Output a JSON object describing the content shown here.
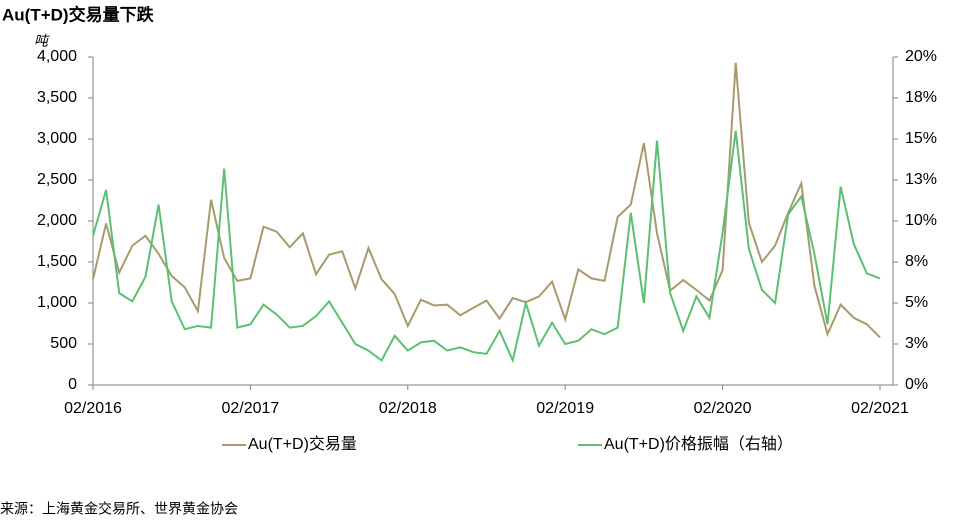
{
  "chart_data": {
    "type": "line",
    "title": "Au(T+D)交易量下跌",
    "y_unit": "吨",
    "source": "来源：上海黄金交易所、世界黄金协会",
    "legend": "bottom",
    "categories": [
      "02/2016",
      null,
      null,
      null,
      null,
      null,
      null,
      null,
      null,
      null,
      null,
      null,
      "02/2017",
      null,
      null,
      null,
      null,
      null,
      null,
      null,
      null,
      null,
      null,
      null,
      "02/2018",
      null,
      null,
      null,
      null,
      null,
      null,
      null,
      null,
      null,
      null,
      null,
      "02/2019",
      null,
      null,
      null,
      null,
      null,
      null,
      null,
      null,
      null,
      null,
      null,
      "02/2020",
      null,
      null,
      null,
      null,
      null,
      null,
      null,
      null,
      null,
      null,
      null,
      "02/2021"
    ],
    "ylim": [
      0,
      4000
    ],
    "yticks": [
      0,
      500,
      {
        "value": 1000,
        "label": "1,000"
      },
      {
        "value": 1500,
        "label": "1,500"
      },
      {
        "value": 2000,
        "label": "2,000"
      },
      {
        "value": 2500,
        "label": "2,500"
      },
      {
        "value": 3000,
        "label": "3,000"
      },
      {
        "value": 3500,
        "label": "3,500"
      },
      {
        "value": 4000,
        "label": "4,000"
      }
    ],
    "y2lim": [
      0,
      20
    ],
    "y2ticks": [
      {
        "value": 0,
        "label": "0%"
      },
      {
        "value": 2.5,
        "label": "3%"
      },
      {
        "value": 5,
        "label": "5%"
      },
      {
        "value": 7.5,
        "label": "8%"
      },
      {
        "value": 10,
        "label": "10%"
      },
      {
        "value": 12.5,
        "label": "13%"
      },
      {
        "value": 15,
        "label": "15%"
      },
      {
        "value": 17.5,
        "label": "18%"
      },
      {
        "value": 20,
        "label": "20%"
      }
    ],
    "series": [
      {
        "name": "Au(T+D)交易量",
        "color": "#a99a6e",
        "values": [
          1290,
          1970,
          1370,
          1700,
          1820,
          1600,
          1330,
          1190,
          900,
          2260,
          1550,
          1270,
          1300,
          1930,
          1870,
          1680,
          1850,
          1350,
          1590,
          1630,
          1180,
          1670,
          1290,
          1110,
          720,
          1040,
          970,
          980,
          850,
          940,
          1030,
          810,
          1060,
          1010,
          1080,
          1260,
          800,
          1410,
          1300,
          1270,
          2050,
          2200,
          2950,
          1850,
          1150,
          1280,
          1160,
          1030,
          1400,
          3930,
          1980,
          1500,
          1700,
          2100,
          2460,
          1210,
          620,
          980,
          820,
          740,
          580
        ]
      },
      {
        "name": "Au(T+D)价格振幅（右轴）",
        "color": "#5cbf72",
        "axis": "y2",
        "values": [
          9.1,
          11.9,
          5.6,
          5.1,
          6.6,
          11,
          5.1,
          3.4,
          3.6,
          3.5,
          13.2,
          3.5,
          3.7,
          4.9,
          4.3,
          3.5,
          3.6,
          4.2,
          5.1,
          3.8,
          2.5,
          2.1,
          1.5,
          3,
          2.1,
          2.6,
          2.7,
          2.1,
          2.3,
          2,
          1.9,
          3.3,
          1.5,
          5,
          2.4,
          3.8,
          2.5,
          2.7,
          3.4,
          3.1,
          3.5,
          10.5,
          5,
          14.9,
          5.6,
          3.3,
          5.4,
          4.1,
          9.3,
          15.5,
          8.3,
          5.8,
          5,
          10.4,
          11.5,
          8,
          3.7,
          12.1,
          8.6,
          6.8,
          6.5
        ]
      }
    ]
  }
}
